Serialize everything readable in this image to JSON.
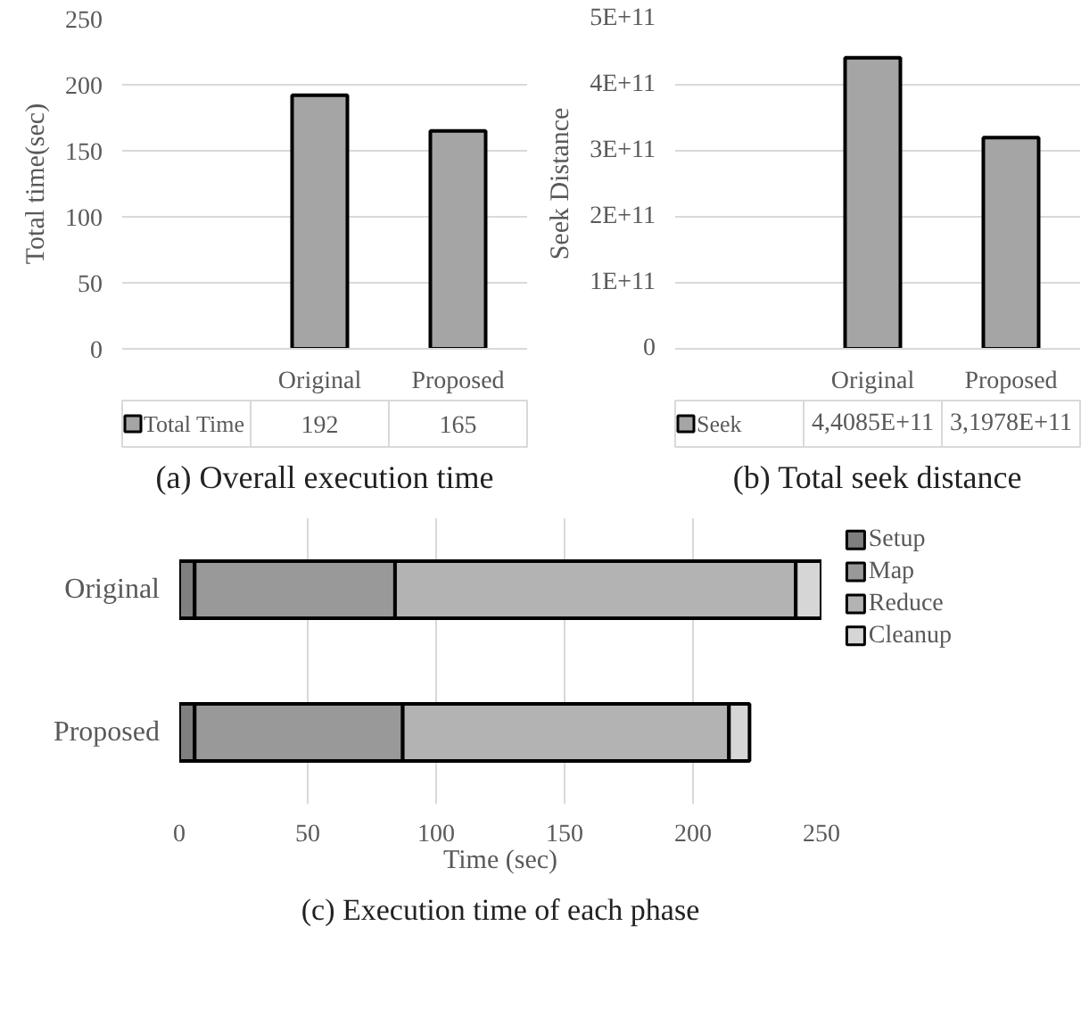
{
  "chart_data": [
    {
      "type": "bar",
      "title": "(a) Overall execution time",
      "ylabel": "Total time(sec)",
      "categories": [
        "Original",
        "Proposed"
      ],
      "series": [
        {
          "name": "Total Time",
          "color": "#a5a5a5",
          "values": [
            192,
            165
          ],
          "value_labels": [
            "192",
            "165"
          ]
        }
      ],
      "ylim": [
        0,
        250
      ],
      "yticks": [
        0,
        50,
        100,
        150,
        200,
        250
      ],
      "grid": "y",
      "legend": "bottom"
    },
    {
      "type": "bar",
      "title": "(b) Total seek distance",
      "ylabel": "Seek Distance",
      "categories": [
        "Original",
        "Proposed"
      ],
      "series": [
        {
          "name": "Seek",
          "color": "#a5a5a5",
          "values": [
            440850000000,
            319780000000
          ],
          "value_labels": [
            "4,4085E+11",
            "3,1978E+11"
          ]
        }
      ],
      "ylim": [
        0,
        500000000000
      ],
      "yticks": [
        0,
        {
          "value": 100000000000,
          "label": "1E+11"
        },
        {
          "value": 200000000000,
          "label": "2E+11"
        },
        {
          "value": 300000000000,
          "label": "3E+11"
        },
        {
          "value": 400000000000,
          "label": "4E+11"
        },
        {
          "value": 500000000000,
          "label": "5E+11"
        }
      ],
      "grid": "y",
      "legend": "bottom"
    },
    {
      "type": "bar",
      "orientation": "horizontal",
      "stacked": true,
      "title": "(c) Execution time of each phase",
      "xlabel": "Time (sec)",
      "categories": [
        "Original",
        "Proposed"
      ],
      "series": [
        {
          "name": "Setup",
          "color": "#7f7f7f",
          "values": [
            6,
            6
          ]
        },
        {
          "name": "Map",
          "color": "#999999",
          "values": [
            78,
            81
          ]
        },
        {
          "name": "Reduce",
          "color": "#b3b3b3",
          "values": [
            156,
            127
          ]
        },
        {
          "name": "Cleanup",
          "color": "#d6d6d6",
          "values": [
            10,
            8
          ]
        }
      ],
      "xlim": [
        0,
        250
      ],
      "xticks": [
        0,
        50,
        100,
        150,
        200,
        250
      ],
      "grid": "x",
      "legend": "right"
    }
  ]
}
